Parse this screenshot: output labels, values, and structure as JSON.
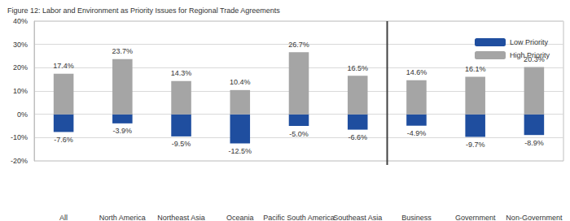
{
  "chart_data": {
    "type": "bar",
    "title": "Figure 12: Labor and Environment as Priority Issues for Regional Trade Agreements",
    "categories": [
      "All",
      "North America",
      "Northeast Asia",
      "Oceania",
      "Pacific South America",
      "Southeast Asia",
      "Business",
      "Government",
      "Non-Government"
    ],
    "series": [
      {
        "name": "Low Priority",
        "color": "#1f4e9f",
        "values": [
          -7.6,
          -3.9,
          -9.5,
          -12.5,
          -5.0,
          -6.6,
          -4.9,
          -9.7,
          -8.9
        ],
        "value_labels": [
          "-7.6%",
          "-3.9%",
          "-9.5%",
          "-12.5%",
          "-5.0%",
          "-6.6%",
          "-4.9%",
          "-9.7%",
          "-8.9%"
        ]
      },
      {
        "name": "High Priority",
        "color": "#a5a5a5",
        "values": [
          17.4,
          23.7,
          14.3,
          10.4,
          26.7,
          16.5,
          14.6,
          16.1,
          20.3
        ],
        "value_labels": [
          "17.4%",
          "23.7%",
          "14.3%",
          "10.4%",
          "26.7%",
          "16.5%",
          "14.6%",
          "16.1%",
          "20.3%"
        ]
      }
    ],
    "ylim": [
      -20,
      40
    ],
    "yticks": [
      {
        "value": -20,
        "label": "-20%"
      },
      {
        "value": -10,
        "label": "-10%"
      },
      {
        "value": 0,
        "label": "0%"
      },
      {
        "value": 10,
        "label": "10%"
      },
      {
        "value": 20,
        "label": "20%"
      },
      {
        "value": 30,
        "label": "30%"
      },
      {
        "value": 40,
        "label": "40%"
      }
    ],
    "stacked": true,
    "data_labels": true,
    "grid": true,
    "legend": "upper right"
  }
}
